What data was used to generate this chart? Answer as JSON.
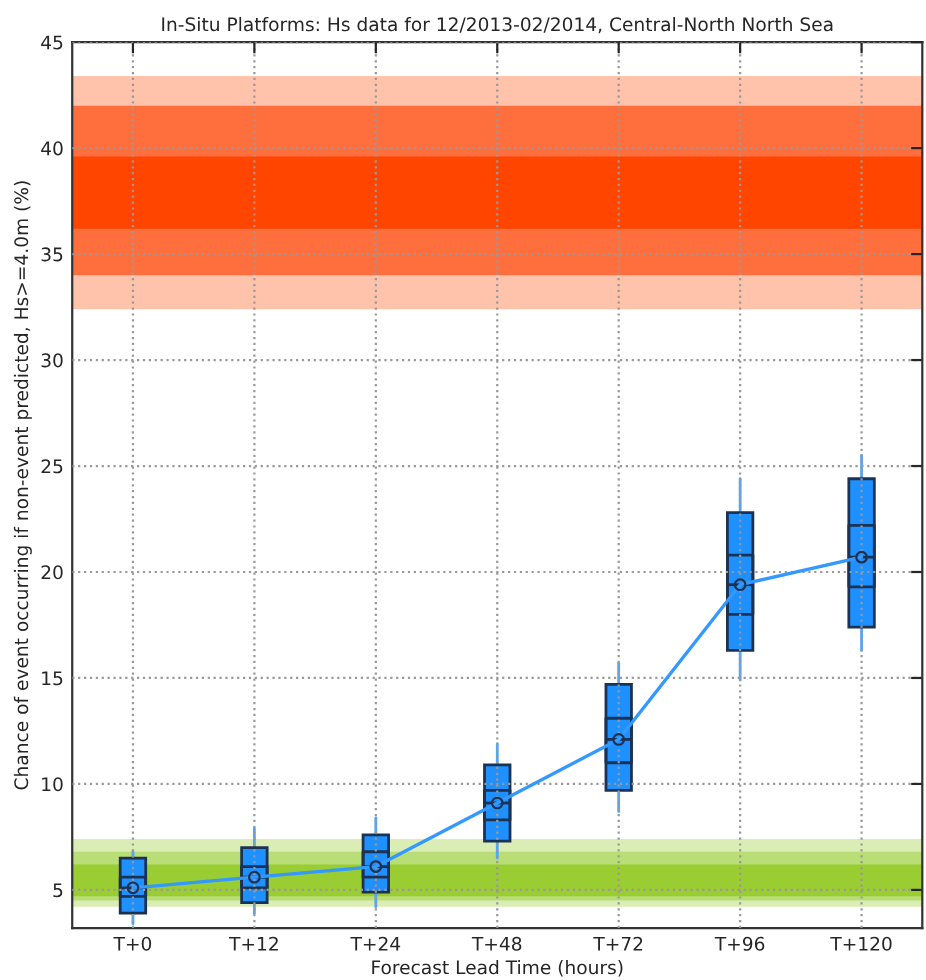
{
  "chart_data": {
    "type": "box",
    "title": "In-Situ Platforms: Hs data for 12/2013-02/2014, Central-North North Sea",
    "xlabel": "Forecast Lead Time (hours)",
    "ylabel": "Chance of event occurring if non-event predicted, Hs>=4.0m (%)",
    "categories": [
      "T+0",
      "T+12",
      "T+24",
      "T+48",
      "T+72",
      "T+96",
      "T+120"
    ],
    "ylim": [
      3.2,
      45
    ],
    "yticks": [
      5,
      10,
      15,
      20,
      25,
      30,
      35,
      40,
      45
    ],
    "grid": true,
    "marker": "circle",
    "line_style": "solid",
    "bands": [
      {
        "axis": "y",
        "from": 32.4,
        "to": 43.4,
        "color": "#ffc3ab"
      },
      {
        "axis": "y",
        "from": 34.0,
        "to": 42.0,
        "color": "#ff6f3e"
      },
      {
        "axis": "y",
        "from": 36.2,
        "to": 39.6,
        "color": "#ff4500"
      },
      {
        "axis": "y",
        "from": 4.2,
        "to": 7.4,
        "color": "#d9edb5"
      },
      {
        "axis": "y",
        "from": 4.5,
        "to": 6.8,
        "color": "#b9dd77"
      },
      {
        "axis": "y",
        "from": 4.7,
        "to": 6.2,
        "color": "#9acd32"
      }
    ],
    "series": [
      {
        "type": "bar",
        "color": "#1e90ff",
        "base": [
          3.9,
          4.4,
          4.9,
          7.3,
          9.7,
          16.3,
          17.4
        ],
        "values": [
          2.6,
          2.6,
          2.7,
          3.6,
          5.0,
          6.5,
          7.0
        ]
      },
      {
        "color": "#1c3252",
        "boxes": [
          {
            "low": 3.4,
            "q1": 4.7,
            "median": 5.1,
            "q3": 5.6,
            "high": 6.8
          },
          {
            "low": 3.9,
            "q1": 5.1,
            "median": 5.6,
            "q3": 6.1,
            "high": 7.9
          },
          {
            "low": 4.2,
            "q1": 5.6,
            "median": 6.1,
            "q3": 6.8,
            "high": 8.4
          },
          {
            "low": 6.5,
            "q1": 8.3,
            "median": 9.1,
            "q3": 9.7,
            "high": 11.9
          },
          {
            "low": 8.7,
            "q1": 11.0,
            "median": 12.1,
            "q3": 13.1,
            "high": 15.7
          },
          {
            "low": 14.9,
            "q1": 18.0,
            "median": 19.4,
            "q3": 20.8,
            "high": 24.4
          },
          {
            "low": 16.3,
            "q1": 19.3,
            "median": 20.7,
            "q3": 22.2,
            "high": 25.5
          }
        ]
      },
      {
        "type": "line",
        "color": "#3399ff",
        "values": [
          5.1,
          5.6,
          6.1,
          9.1,
          12.1,
          19.4,
          20.7
        ]
      }
    ]
  }
}
